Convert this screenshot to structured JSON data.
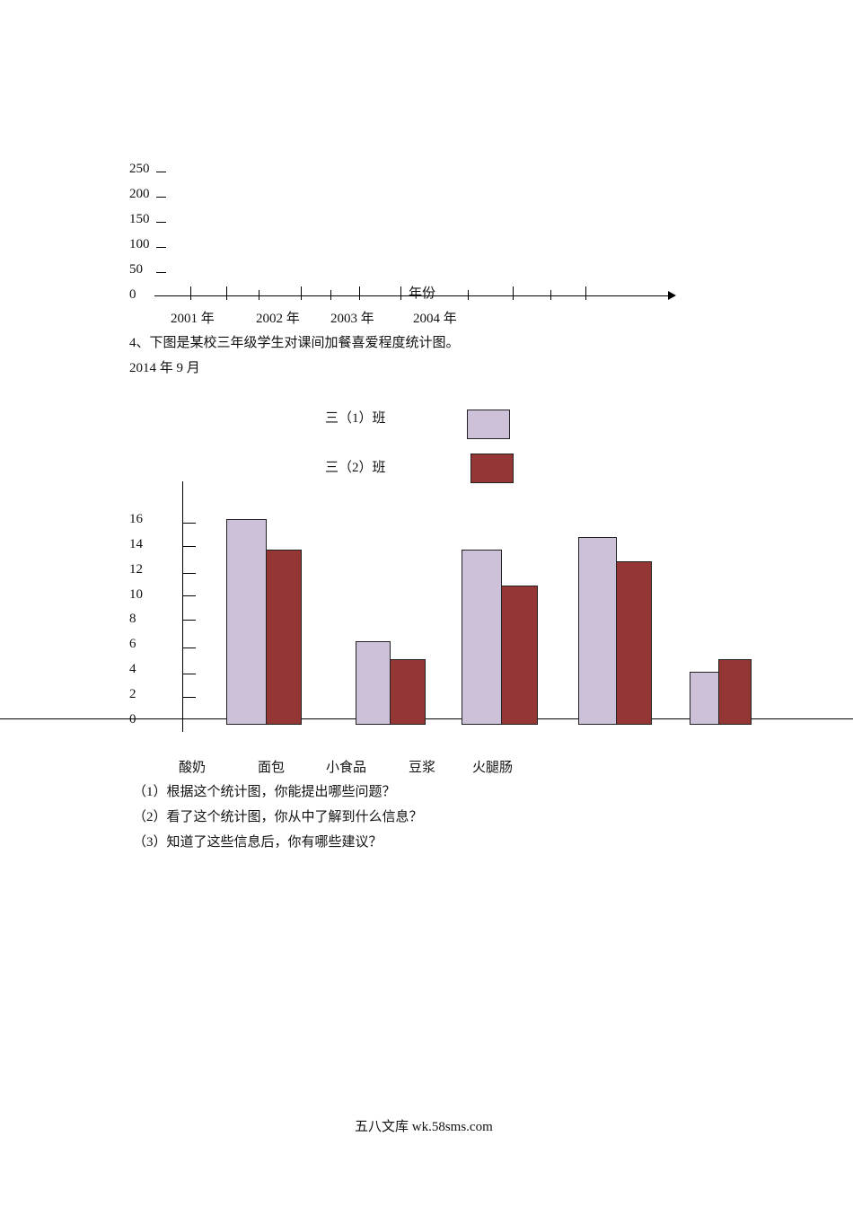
{
  "line_chart_blank": {
    "y_ticks": [
      "250",
      "200",
      "150",
      "100",
      "50",
      "0"
    ],
    "x_axis_label": "年份",
    "x_labels": [
      "2001 年",
      "2002 年",
      "2003 年",
      "2004 年"
    ]
  },
  "question4": {
    "title": "4、下图是某校三年级学生对课间加餐喜爱程度统计图。",
    "date": "2014 年 9 月"
  },
  "chart_data": {
    "type": "bar",
    "categories": [
      "酸奶",
      "面包",
      "小食品",
      "豆浆",
      "火腿肠"
    ],
    "y_ticks": [
      "16",
      "14",
      "12",
      "10",
      "8",
      "6",
      "4",
      "2",
      "0"
    ],
    "ylim": [
      0,
      16
    ],
    "legend_placement": "top-center",
    "series": [
      {
        "name": "三（1）班",
        "color": "#cdc1da",
        "values": [
          16.5,
          6.5,
          14,
          15,
          4
        ]
      },
      {
        "name": "三（2）班",
        "color": "#943634",
        "values": [
          14,
          5,
          11,
          13,
          5
        ]
      }
    ]
  },
  "questions": [
    "（1）根据这个统计图，你能提出哪些问题？",
    "（2）看了这个统计图，你从中了解到什么信息？",
    "（3）知道了这些信息后，你有哪些建议？"
  ],
  "footer": "五八文库 wk.58sms.com"
}
